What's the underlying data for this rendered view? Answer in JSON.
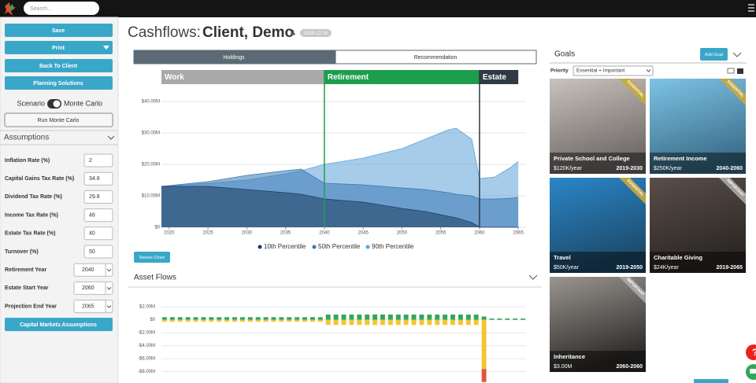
{
  "header": {
    "search_placeholder": "Search..."
  },
  "sidebar": {
    "buttons": [
      "Save",
      "Print",
      "Back To Client",
      "Planning Solutions"
    ],
    "scenario_label": "Scenario",
    "scenario_option": "Monte Carlo",
    "run_button": "Run Monte Carlo",
    "section": "Assumptions",
    "fields": [
      {
        "label": "Inflation Rate (%)",
        "value": 2
      },
      {
        "label": "Capital Gains Tax Rate (%)",
        "value": 34.8
      },
      {
        "label": "Dividend Tax Rate (%)",
        "value": 29.8
      },
      {
        "label": "Income Tax Rate (%)",
        "value": 48
      },
      {
        "label": "Estate Tax Rate (%)",
        "value": 40
      },
      {
        "label": "Turnover (%)",
        "value": 50
      },
      {
        "label": "Retirement Year",
        "value": 2040,
        "select": true
      },
      {
        "label": "Estate Start Year",
        "value": 2060,
        "select": true
      },
      {
        "label": "Projection End Year",
        "value": 2065,
        "select": true
      }
    ],
    "footer_button": "Capital Markets Assumptions"
  },
  "page": {
    "title": "Cashflows:",
    "client": "Client, Demo",
    "badge": "2019-12-16",
    "tabs": [
      "Holdings",
      "Recommendation"
    ],
    "active_tab": 0,
    "resize_button": "Resize Chart"
  },
  "chart_data": [
    {
      "type": "area",
      "x": [
        2019,
        2025,
        2030,
        2035,
        2037,
        2040,
        2045,
        2050,
        2053,
        2056,
        2057,
        2059,
        2060,
        2062,
        2064,
        2065
      ],
      "series": [
        {
          "name": "10th Percentile",
          "color": "#1c3c60",
          "values": [
            13,
            13,
            12,
            11,
            10.5,
            9,
            8,
            6,
            5,
            3.5,
            3,
            1.5,
            0,
            0,
            0,
            0
          ]
        },
        {
          "name": "50th Percentile",
          "color": "#3a78b3",
          "values": [
            13,
            14.5,
            16.5,
            18,
            18.5,
            14,
            13.5,
            12.5,
            12,
            11,
            10.5,
            10,
            9,
            9,
            9.2,
            9.5
          ]
        },
        {
          "name": "90th Percentile",
          "color": "#5da3d8",
          "values": [
            13,
            14,
            15,
            17,
            18,
            20,
            22,
            25,
            28,
            31,
            31.5,
            28,
            15.5,
            16,
            19,
            21
          ]
        }
      ],
      "xlim": [
        2019,
        2066
      ],
      "xticks": [
        2020,
        2025,
        2030,
        2035,
        2040,
        2045,
        2050,
        2055,
        2060,
        2065
      ],
      "ylim": [
        0,
        50
      ],
      "yticks": [
        {
          "value": 0,
          "label": "$0"
        },
        {
          "value": 10,
          "label": "$10.00M"
        },
        {
          "value": 20,
          "label": "$20.00M"
        },
        {
          "value": 30,
          "label": "$30.00M"
        },
        {
          "value": 40,
          "label": "$40.00M"
        }
      ],
      "phases": [
        {
          "label": "Work",
          "start": 2019,
          "end": 2040,
          "color": "#a9a9a9"
        },
        {
          "label": "Retirement",
          "start": 2040,
          "end": 2060,
          "color": "#1e9e4c"
        },
        {
          "label": "Estate",
          "start": 2060,
          "end": 2065,
          "color": "#2f3a45"
        }
      ],
      "grid": true,
      "legend": "bottom"
    },
    {
      "type": "bar",
      "title": "Asset Flows",
      "stacked": true,
      "x": [
        2019,
        2020,
        2021,
        2022,
        2023,
        2024,
        2025,
        2026,
        2027,
        2028,
        2029,
        2030,
        2031,
        2032,
        2033,
        2034,
        2035,
        2036,
        2037,
        2038,
        2039,
        2040,
        2041,
        2042,
        2043,
        2044,
        2045,
        2046,
        2047,
        2048,
        2049,
        2050,
        2051,
        2052,
        2053,
        2054,
        2055,
        2056,
        2057,
        2058,
        2059,
        2060,
        2061,
        2062,
        2063,
        2064,
        2065
      ],
      "series": [
        {
          "color": "#2fa75a",
          "values": [
            0.4,
            0.4,
            0.4,
            0.4,
            0.4,
            0.4,
            0.4,
            0.4,
            0.4,
            0.4,
            0.4,
            0.4,
            0.4,
            0.4,
            0.4,
            0.4,
            0.4,
            0.4,
            0.4,
            0.4,
            0.4,
            0.8,
            0.8,
            0.8,
            0.8,
            0.8,
            0.8,
            0.8,
            0.8,
            0.8,
            0.8,
            0.8,
            0.8,
            0.8,
            0.8,
            0.8,
            0.8,
            0.8,
            0.8,
            0.8,
            0.8,
            0.5,
            0.2,
            0.2,
            0.2,
            0.2,
            0.2
          ]
        },
        {
          "color": "#f5c431",
          "values": [
            -0.3,
            -0.3,
            -0.3,
            -0.3,
            -0.3,
            -0.3,
            -0.3,
            -0.3,
            -0.3,
            -0.3,
            -0.3,
            -0.3,
            -0.3,
            -0.3,
            -0.3,
            -0.3,
            -0.3,
            -0.3,
            -0.3,
            -0.3,
            -0.3,
            -0.8,
            -0.8,
            -0.8,
            -0.8,
            -0.8,
            -0.8,
            -0.8,
            -0.8,
            -0.8,
            -0.8,
            -0.8,
            -0.8,
            -0.8,
            -0.8,
            -0.8,
            -0.8,
            -0.8,
            -0.8,
            -0.8,
            -0.8,
            -7.6,
            0,
            0,
            0,
            0,
            0
          ]
        },
        {
          "color": "#e0543b",
          "values": [
            0,
            0,
            0,
            0,
            0,
            0,
            0,
            0,
            0,
            0,
            0,
            0,
            0,
            0,
            0,
            0,
            0,
            0,
            0,
            0,
            0,
            0,
            0,
            0,
            0,
            0,
            0,
            0,
            0,
            0,
            0,
            0,
            0,
            0,
            0,
            0,
            0,
            0,
            0,
            0,
            0,
            -2,
            0,
            0,
            0,
            0,
            0
          ]
        }
      ],
      "xlim": [
        2018.6,
        2065.4
      ],
      "ylim": [
        -9.75,
        2.5
      ],
      "yticks": [
        {
          "value": 2,
          "label": "$2.00M"
        },
        {
          "value": 0,
          "label": "$0"
        },
        {
          "value": -2,
          "label": "-$2.00M"
        },
        {
          "value": -4,
          "label": "-$4.00M"
        },
        {
          "value": -6,
          "label": "-$6.00M"
        },
        {
          "value": -8,
          "label": "-$8.00M"
        }
      ],
      "grid": true
    }
  ],
  "goals": {
    "title": "Goals",
    "add_button": "Add Goal",
    "priority_label": "Priority",
    "priority_value": "Essential + Important",
    "cards": [
      {
        "name": "Private School and College",
        "amount": "$120K/year",
        "years": "2019-2030",
        "priority": "ESSENTIAL",
        "image_colors": [
          "#c9c2bd",
          "#6f6a68"
        ]
      },
      {
        "name": "Retirement Income",
        "amount": "$250K/year",
        "years": "2040-2060",
        "priority": "ESSENTIAL",
        "image_colors": [
          "#7ec3e6",
          "#3a6e8a"
        ]
      },
      {
        "name": "Travel",
        "amount": "$50K/year",
        "years": "2019-2050",
        "priority": "ESSENTIAL",
        "image_colors": [
          "#2a86c8",
          "#1d4a6a"
        ]
      },
      {
        "name": "Charitable Giving",
        "amount": "$24K/year",
        "years": "2019-2065",
        "priority": "IMPORTANT",
        "image_colors": [
          "#5a4e48",
          "#2a2624"
        ]
      },
      {
        "name": "Inheritance",
        "amount": "$3.00M",
        "years": "2060-2060",
        "priority": "IMPORTANT",
        "image_colors": [
          "#9a9590",
          "#2c2a28"
        ]
      }
    ]
  }
}
